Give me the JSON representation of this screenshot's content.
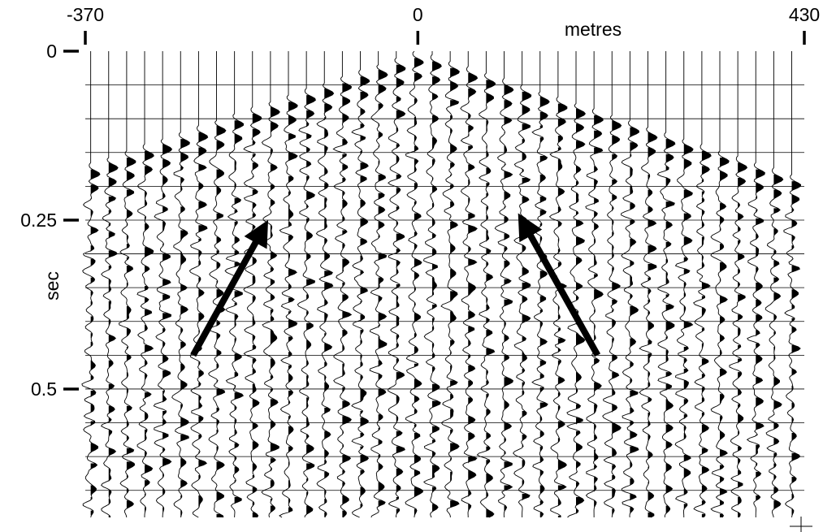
{
  "chart_data": {
    "type": "seismic-wiggle",
    "title": "",
    "xlabel": "metres",
    "ylabel": "sec",
    "x_ticks": [
      {
        "value": -370,
        "label": "-370"
      },
      {
        "value": 0,
        "label": "0"
      },
      {
        "value": 430,
        "label": "430"
      }
    ],
    "y_ticks": [
      {
        "value": 0,
        "label": "0"
      },
      {
        "value": 0.25,
        "label": "0.25"
      },
      {
        "value": 0.5,
        "label": "0.5"
      }
    ],
    "xlim": [
      -370,
      430
    ],
    "ylim": [
      0,
      0.69
    ],
    "y_inverted": true,
    "trace_spacing_m": 20,
    "trace_count": 40,
    "first_break_apex_m": 0,
    "first_break_times_s": {
      "at_-370_m": 0.17,
      "at_0_m": 0.0,
      "at_430_m": 0.19
    },
    "grid": true,
    "fill": "positive lobes black",
    "annotations": [
      {
        "type": "arrow",
        "from": [
          -250,
          0.45
        ],
        "to": [
          -175,
          0.27
        ]
      },
      {
        "type": "arrow",
        "from": [
          200,
          0.45
        ],
        "to": [
          120,
          0.26
        ]
      }
    ]
  }
}
